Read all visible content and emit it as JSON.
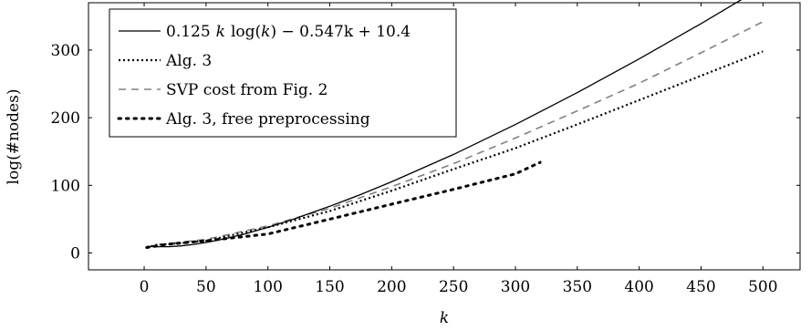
{
  "chart_data": {
    "type": "line",
    "xlabel": "k",
    "ylabel": "log(#nodes)",
    "xlim": [
      -45,
      530
    ],
    "ylim": [
      -25,
      370
    ],
    "xticks": [
      0,
      50,
      100,
      150,
      200,
      250,
      300,
      350,
      400,
      450,
      500
    ],
    "yticks": [
      0,
      100,
      200,
      300
    ],
    "legend_position": "top-left",
    "grid": false,
    "series": [
      {
        "name": "0.125 k log(k) − 0.547k + 10.4",
        "style": "solid",
        "color": "#000000",
        "x": [
          2,
          10,
          20,
          30,
          40,
          50,
          60,
          80,
          100,
          120,
          150,
          175,
          200,
          250,
          300,
          350,
          400,
          450,
          500
        ],
        "y": [
          9.5,
          9.2,
          9.2,
          10.4,
          12.6,
          15.5,
          19.0,
          27.5,
          37.8,
          49.5,
          68.9,
          86.4,
          105.2,
          145.7,
          189.9,
          237.1,
          287.0,
          339.1,
          393.4
        ]
      },
      {
        "name": "Alg. 3",
        "style": "dotted",
        "color": "#000000",
        "x": [
          2,
          10,
          20,
          50,
          100,
          150,
          200,
          250,
          300,
          350,
          400,
          450,
          500
        ],
        "y": [
          8,
          12,
          13,
          18,
          38,
          62,
          92,
          124,
          155,
          190,
          226,
          262,
          298
        ]
      },
      {
        "name": "SVP cost from Fig. 2",
        "style": "dashed",
        "color": "#808080",
        "x": [
          2,
          10,
          20,
          50,
          100,
          150,
          200,
          250,
          300,
          350,
          400,
          450,
          500
        ],
        "y": [
          8,
          12,
          14,
          20,
          40,
          66,
          98,
          132,
          170,
          210,
          251,
          296,
          342
        ]
      },
      {
        "name": "Alg. 3, free preprocessing",
        "style": "loose-dotted",
        "color": "#000000",
        "x": [
          2,
          20,
          50,
          100,
          150,
          200,
          250,
          300,
          320
        ],
        "y": [
          8,
          13,
          18,
          28,
          50,
          72,
          94,
          117,
          134
        ]
      }
    ]
  },
  "legend": {
    "entries": [
      {
        "label_main": "0.125",
        "label_k1": "k",
        "label_log": "log(",
        "label_k2": "k",
        "label_rest": ") − 0.547k + 10.4"
      },
      {
        "label_main": "Alg. 3"
      },
      {
        "label_main": "SVP cost from Fig. 2"
      },
      {
        "label_main": "Alg. 3, free preprocessing"
      }
    ]
  }
}
